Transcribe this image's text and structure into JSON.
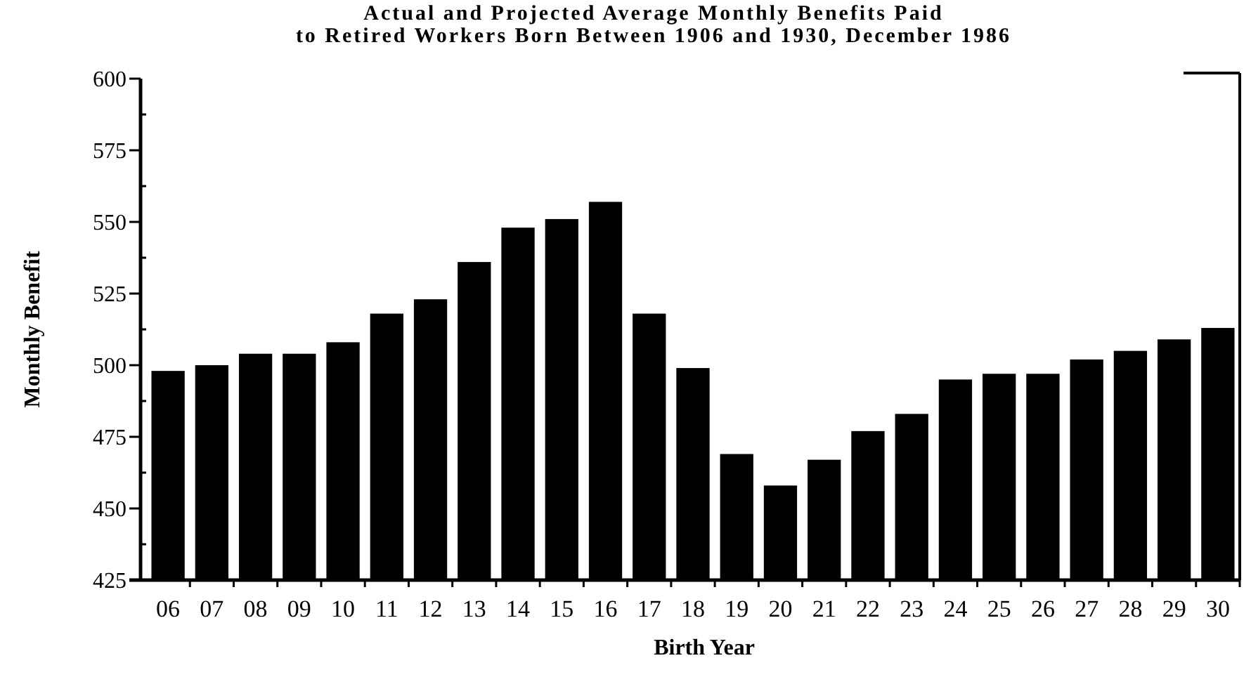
{
  "chart_data": {
    "type": "bar",
    "title": "Actual and Projected Average Monthly Benefits Paid",
    "subtitle": "to Retired Workers Born Between 1906 and 1930, December 1986",
    "xlabel": "Birth Year",
    "ylabel": "Monthly Benefit",
    "categories": [
      "06",
      "07",
      "08",
      "09",
      "10",
      "11",
      "12",
      "13",
      "14",
      "15",
      "16",
      "17",
      "18",
      "19",
      "20",
      "21",
      "22",
      "23",
      "24",
      "25",
      "26",
      "27",
      "28",
      "29",
      "30"
    ],
    "values": [
      498,
      500,
      504,
      504,
      508,
      518,
      523,
      536,
      548,
      551,
      557,
      518,
      499,
      469,
      458,
      467,
      477,
      483,
      495,
      497,
      497,
      502,
      505,
      509,
      513
    ],
    "color": "#000000",
    "ylim": [
      425,
      600
    ],
    "yticks": [
      425,
      {
        "value": 437.5,
        "label": null
      },
      450,
      {
        "value": 462.5,
        "label": null
      },
      475,
      {
        "value": 487.5,
        "label": null
      },
      500,
      {
        "value": 512.5,
        "label": null
      },
      525,
      {
        "value": 537.5,
        "label": null
      },
      550,
      {
        "value": 562.5,
        "label": null
      },
      575,
      {
        "value": 587.5,
        "label": null
      },
      600
    ],
    "grid": false
  }
}
